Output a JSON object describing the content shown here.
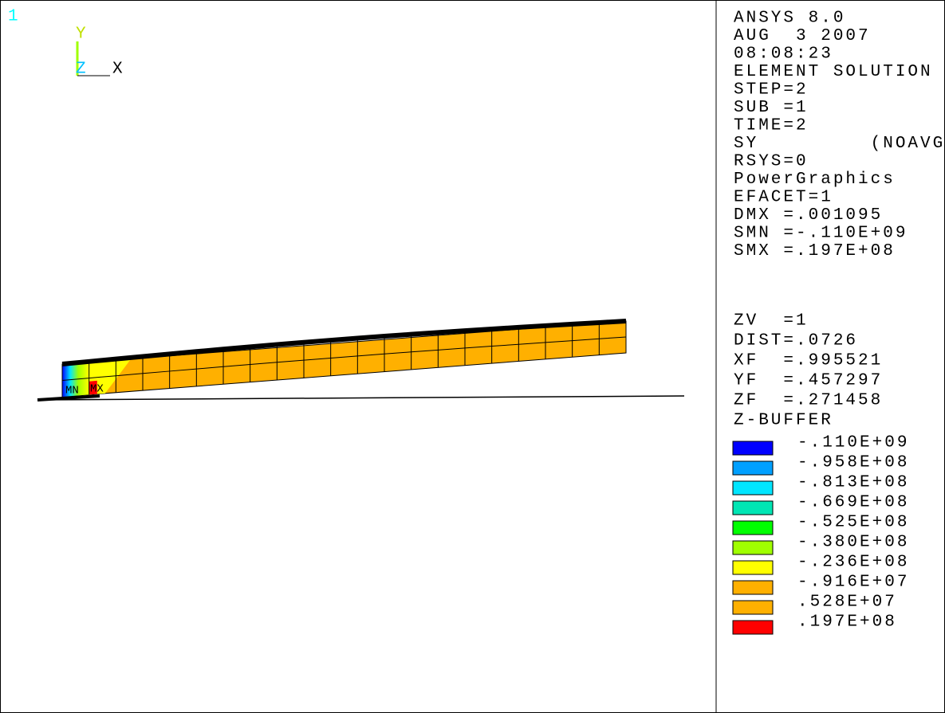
{
  "window": {
    "number": "1"
  },
  "triad": {
    "y": "Y",
    "z": "Z",
    "x": "X"
  },
  "markers": {
    "min": "MN",
    "max": "MX"
  },
  "info_top": [
    "ANSYS 8.0",
    "AUG  3 2007",
    "08:08:23",
    "ELEMENT SOLUTION",
    "STEP=2",
    "SUB =1",
    "TIME=2",
    "SY         (NOAVG)",
    "RSYS=0",
    "PowerGraphics",
    "EFACET=1",
    "DMX =.001095",
    "SMN =-.110E+09",
    "SMX =.197E+08"
  ],
  "info_bottom": [
    "ZV  =1",
    "DIST=.0726",
    "XF  =.995521",
    "YF  =.457297",
    "ZF  =.271458",
    "Z-BUFFER"
  ],
  "legend": [
    {
      "label": "-.110E+09",
      "color": "#0000ff"
    },
    {
      "label": "-.958E+08",
      "color": "#00a0ff"
    },
    {
      "label": "-.813E+08",
      "color": "#00e6ff"
    },
    {
      "label": "-.669E+08",
      "color": "#00e6b4"
    },
    {
      "label": "-.525E+08",
      "color": "#00ff00"
    },
    {
      "label": "-.380E+08",
      "color": "#a0ff00"
    },
    {
      "label": "-.236E+08",
      "color": "#ffff00"
    },
    {
      "label": "-.916E+07",
      "color": "#ffb000"
    },
    {
      "label": ".528E+07",
      "color": "#ffb000"
    },
    {
      "label": ".197E+08",
      "color": "#ff0000"
    }
  ]
}
